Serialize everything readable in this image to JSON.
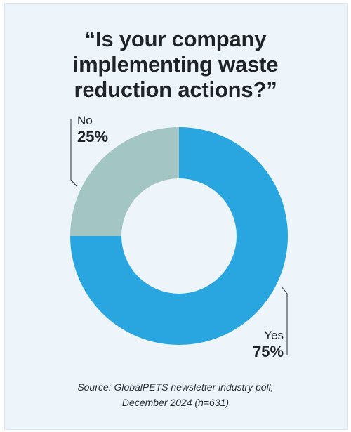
{
  "chart_data": {
    "type": "pie",
    "donut": true,
    "title_lines": [
      "“Is your company",
      "implementing waste",
      "reduction actions?”"
    ],
    "slices": [
      {
        "label": "Yes",
        "value": 75,
        "display": "75%",
        "color": "#29a6e0"
      },
      {
        "label": "No",
        "value": 25,
        "display": "25%",
        "color": "#a3c5c4"
      }
    ],
    "source_lines": [
      "Source: GlobalPETS newsletter industry poll,",
      "December 2024 (n=631)"
    ]
  },
  "colors": {
    "background": "#eef5fa",
    "text": "#1f2226"
  }
}
